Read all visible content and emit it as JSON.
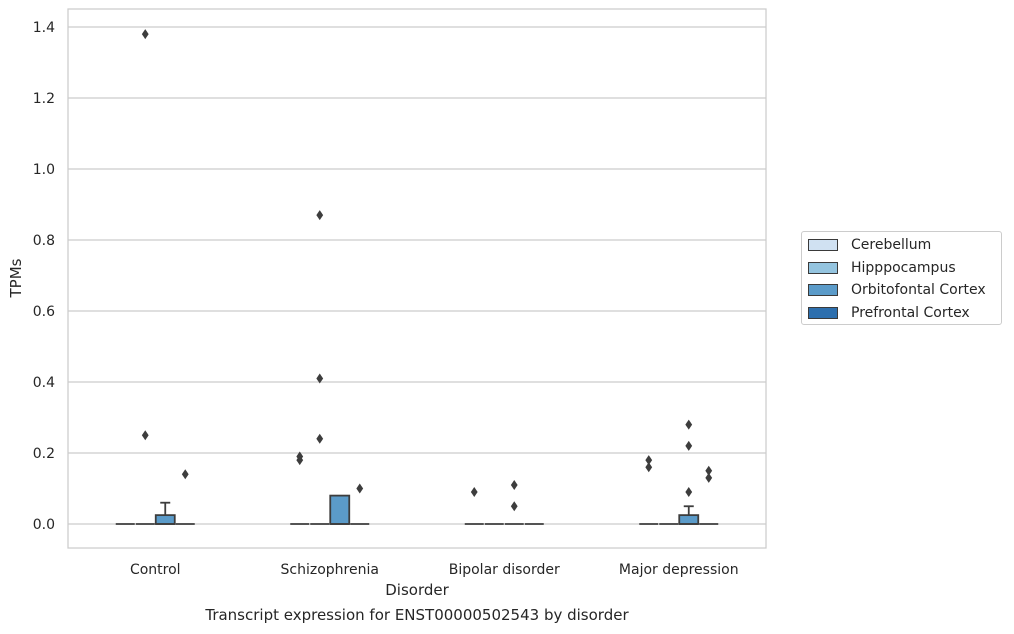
{
  "chart_data": {
    "type": "box",
    "xlabel": "Disorder",
    "ylabel": "TPMs",
    "caption": "Transcript expression for ENST00000502543 by disorder",
    "categories": [
      "Control",
      "Schizophrenia",
      "Bipolar disorder",
      "Major depression"
    ],
    "ylim": [
      -0.068,
      1.45
    ],
    "yticks": [
      0.0,
      0.2,
      0.4,
      0.6,
      0.8,
      1.0,
      1.2,
      1.4
    ],
    "ytick_labels": [
      "0.0",
      "0.2",
      "0.4",
      "0.6",
      "0.8",
      "1.0",
      "1.2",
      "1.4"
    ],
    "grid": "horizontal",
    "legend_position": "right",
    "series": [
      {
        "name": "Cerebellum",
        "color": "#d0e1f2",
        "boxes": [
          {
            "q1": 0,
            "median": 0,
            "q3": 0,
            "whisker_low": 0,
            "whisker_high": 0,
            "outliers": []
          },
          {
            "q1": 0,
            "median": 0,
            "q3": 0,
            "whisker_low": 0,
            "whisker_high": 0,
            "outliers": [
              0.18,
              0.19
            ]
          },
          {
            "q1": 0,
            "median": 0,
            "q3": 0,
            "whisker_low": 0,
            "whisker_high": 0,
            "outliers": [
              0.09
            ]
          },
          {
            "q1": 0,
            "median": 0,
            "q3": 0,
            "whisker_low": 0,
            "whisker_high": 0,
            "outliers": [
              0.16,
              0.18
            ]
          }
        ]
      },
      {
        "name": "Hipppocampus",
        "color": "#94c4df",
        "boxes": [
          {
            "q1": 0,
            "median": 0,
            "q3": 0,
            "whisker_low": 0,
            "whisker_high": 0,
            "outliers": [
              1.38,
              0.25
            ]
          },
          {
            "q1": 0,
            "median": 0,
            "q3": 0,
            "whisker_low": 0,
            "whisker_high": 0,
            "outliers": [
              0.87,
              0.41,
              0.24
            ]
          },
          {
            "q1": 0,
            "median": 0,
            "q3": 0,
            "whisker_low": 0,
            "whisker_high": 0,
            "outliers": []
          },
          {
            "q1": 0,
            "median": 0,
            "q3": 0,
            "whisker_low": 0,
            "whisker_high": 0,
            "outliers": []
          }
        ]
      },
      {
        "name": "Orbitofontal Cortex",
        "color": "#5b9bc9",
        "boxes": [
          {
            "q1": 0,
            "median": 0,
            "q3": 0.025,
            "whisker_low": 0,
            "whisker_high": 0.06,
            "outliers": []
          },
          {
            "q1": 0,
            "median": 0,
            "q3": 0.08,
            "whisker_low": 0,
            "whisker_high": 0.08,
            "outliers": []
          },
          {
            "q1": 0,
            "median": 0,
            "q3": 0,
            "whisker_low": 0,
            "whisker_high": 0,
            "outliers": [
              0.11,
              0.05
            ]
          },
          {
            "q1": 0,
            "median": 0,
            "q3": 0.025,
            "whisker_low": 0,
            "whisker_high": 0.05,
            "outliers": [
              0.28,
              0.22,
              0.09
            ]
          }
        ]
      },
      {
        "name": "Prefrontal Cortex",
        "color": "#2d6fae",
        "boxes": [
          {
            "q1": 0,
            "median": 0,
            "q3": 0,
            "whisker_low": 0,
            "whisker_high": 0,
            "outliers": [
              0.14
            ]
          },
          {
            "q1": 0,
            "median": 0,
            "q3": 0,
            "whisker_low": 0,
            "whisker_high": 0,
            "outliers": [
              0.1
            ]
          },
          {
            "q1": 0,
            "median": 0,
            "q3": 0,
            "whisker_low": 0,
            "whisker_high": 0,
            "outliers": []
          },
          {
            "q1": 0,
            "median": 0,
            "q3": 0,
            "whisker_low": 0,
            "whisker_high": 0,
            "outliers": [
              0.15,
              0.13
            ]
          }
        ]
      }
    ]
  }
}
